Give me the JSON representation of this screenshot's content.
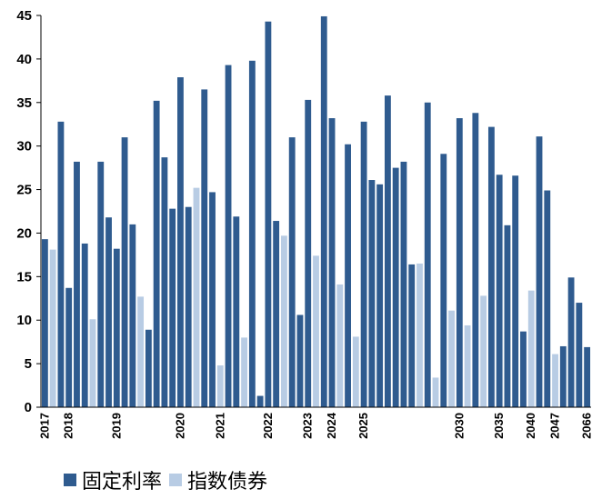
{
  "chart_data": {
    "type": "bar",
    "ylim": [
      0,
      45
    ],
    "yticks": [
      0,
      5,
      10,
      15,
      20,
      25,
      30,
      35,
      40,
      45
    ],
    "series": [
      {
        "name": "固定利率",
        "color": "#2f5b8f",
        "values": [
          19.3,
          null,
          32.8,
          13.7,
          28.2,
          18.8,
          null,
          28.2,
          21.8,
          18.2,
          31.0,
          21.0,
          null,
          8.9,
          35.2,
          28.7,
          22.8,
          37.9,
          23.0,
          null,
          36.5,
          24.7,
          null,
          39.3,
          21.9,
          null,
          39.8,
          1.3,
          44.3,
          21.4,
          null,
          31.0,
          10.6,
          35.3,
          null,
          44.9,
          33.2,
          null,
          30.2,
          null,
          32.8,
          26.1,
          25.6,
          35.8,
          27.5,
          28.2,
          16.4,
          null,
          35.0,
          null,
          29.1,
          null,
          33.2,
          null,
          33.8,
          null,
          32.2,
          26.7,
          20.9,
          26.6,
          8.7,
          null,
          31.1,
          24.9,
          null,
          7.0,
          14.9,
          12.0,
          6.9
        ]
      },
      {
        "name": "指数债券",
        "color": "#b8cce4",
        "values": [
          null,
          18.1,
          null,
          null,
          null,
          null,
          10.1,
          null,
          null,
          null,
          null,
          null,
          12.7,
          null,
          null,
          null,
          null,
          null,
          null,
          25.2,
          null,
          null,
          4.8,
          null,
          null,
          8.0,
          null,
          null,
          null,
          null,
          19.7,
          null,
          null,
          null,
          17.4,
          null,
          null,
          14.1,
          null,
          8.1,
          null,
          null,
          null,
          null,
          null,
          null,
          null,
          16.5,
          null,
          3.4,
          null,
          11.1,
          null,
          9.4,
          null,
          12.8,
          null,
          null,
          null,
          null,
          null,
          13.4,
          null,
          null,
          6.1,
          null,
          null,
          null,
          null
        ]
      }
    ],
    "x_labels": [
      {
        "i": 0,
        "label": "2017"
      },
      {
        "i": 3,
        "label": "2018"
      },
      {
        "i": 9,
        "label": "2019"
      },
      {
        "i": 17,
        "label": "2020"
      },
      {
        "i": 22,
        "label": "2021"
      },
      {
        "i": 28,
        "label": "2022"
      },
      {
        "i": 33,
        "label": "2023"
      },
      {
        "i": 36,
        "label": "2024"
      },
      {
        "i": 40,
        "label": "2025"
      },
      {
        "i": 52,
        "label": "2030"
      },
      {
        "i": 57,
        "label": "2035"
      },
      {
        "i": 61,
        "label": "2040"
      },
      {
        "i": 64,
        "label": "2047"
      },
      {
        "i": 68,
        "label": "2066"
      }
    ],
    "legend": {
      "position": "bottom",
      "items": [
        {
          "label": "固定利率",
          "color": "#2f5b8f"
        },
        {
          "label": "指数债券",
          "color": "#b8cce4"
        }
      ]
    }
  }
}
